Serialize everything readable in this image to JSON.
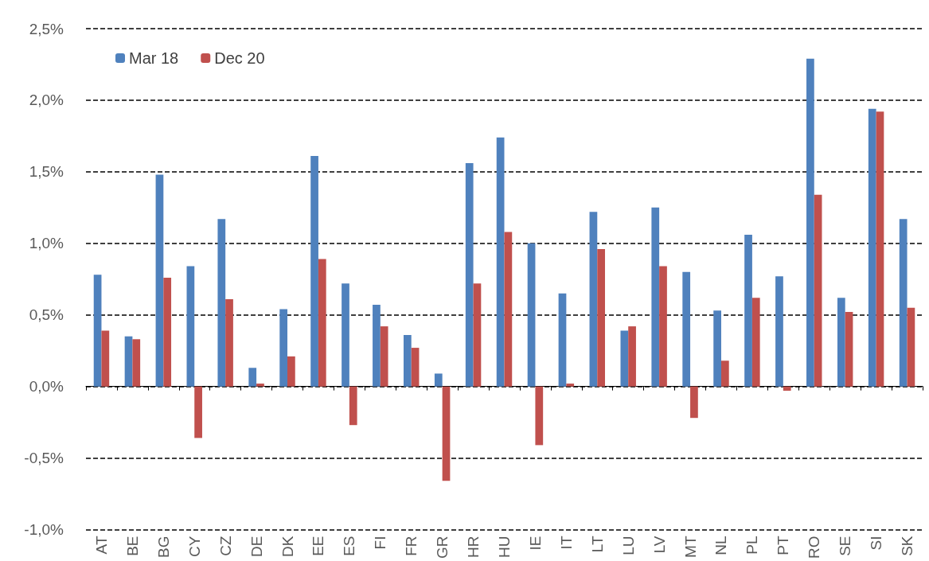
{
  "chart_data": {
    "type": "bar",
    "categories": [
      "AT",
      "BE",
      "BG",
      "CY",
      "CZ",
      "DE",
      "DK",
      "EE",
      "ES",
      "FI",
      "FR",
      "GR",
      "HR",
      "HU",
      "IE",
      "IT",
      "LT",
      "LU",
      "LV",
      "MT",
      "NL",
      "PL",
      "PT",
      "RO",
      "SE",
      "SI",
      "SK"
    ],
    "series": [
      {
        "name": "Mar 18",
        "color": "#4f81bd",
        "values": [
          0.78,
          0.35,
          1.48,
          0.84,
          1.17,
          0.13,
          0.54,
          1.61,
          0.72,
          0.57,
          0.36,
          0.09,
          1.56,
          1.74,
          1.0,
          0.65,
          1.22,
          0.39,
          1.25,
          0.8,
          0.53,
          1.06,
          0.77,
          2.29,
          0.62,
          1.94,
          1.17
        ]
      },
      {
        "name": "Dec 20",
        "color": "#c0504d",
        "values": [
          0.39,
          0.33,
          0.76,
          -0.36,
          0.61,
          0.02,
          0.21,
          0.89,
          -0.27,
          0.42,
          0.27,
          -0.66,
          0.72,
          1.08,
          -0.41,
          0.02,
          0.96,
          0.42,
          0.84,
          -0.22,
          0.18,
          0.62,
          -0.03,
          1.34,
          0.52,
          1.92,
          0.55
        ]
      }
    ],
    "ylim": [
      -1,
      2.5
    ],
    "yticks": [
      {
        "value": -1,
        "label": "-1,0%"
      },
      {
        "value": -0.5,
        "label": "-0,5%"
      },
      {
        "value": 0,
        "label": "0,0%"
      },
      {
        "value": 0.5,
        "label": "0,5%"
      },
      {
        "value": 1,
        "label": "1,0%"
      },
      {
        "value": 1.5,
        "label": "1,5%"
      },
      {
        "value": 2,
        "label": "2,0%"
      },
      {
        "value": 2.5,
        "label": "2,5%"
      }
    ],
    "grid": "y",
    "line_style": "dashed",
    "legend": "top left"
  }
}
